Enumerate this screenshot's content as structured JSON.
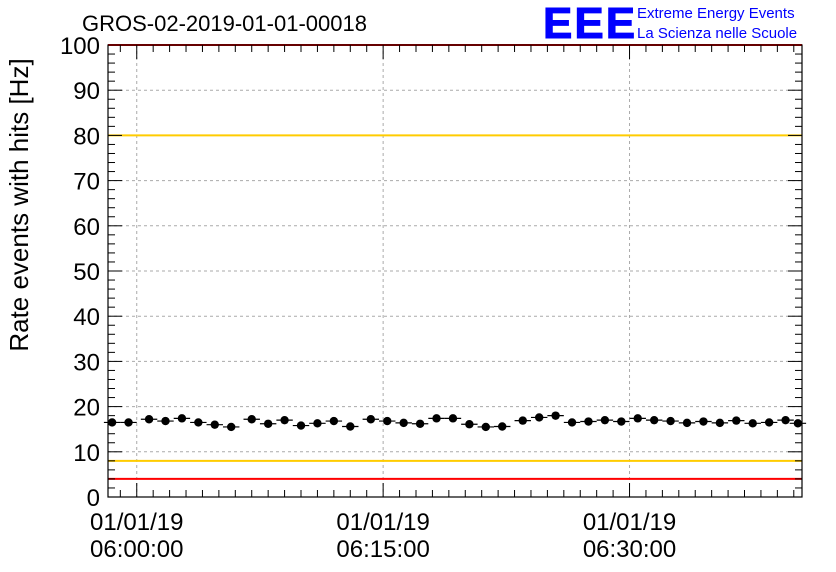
{
  "title": "GROS-02-2019-01-01-00018",
  "logo": {
    "letters": "EEE",
    "line1": "Extreme Energy Events",
    "line2": "La Scienza nelle Scuole",
    "color": "#0000ff"
  },
  "chart_data": {
    "type": "scatter",
    "title": "GROS-02-2019-01-01-00018",
    "ylabel": "Rate events with hits [Hz]",
    "xlabel": "",
    "ylim": [
      0,
      100
    ],
    "xlim_minutes": [
      -1.75,
      40.5
    ],
    "x_unit": "minutes after 01/01/19 06:00:00",
    "yticks": [
      "0",
      "10",
      "20",
      "30",
      "40",
      "50",
      "60",
      "70",
      "80",
      "90",
      "100"
    ],
    "xticks": [
      {
        "minute": 0,
        "date": "01/01/19",
        "time": "06:00:00"
      },
      {
        "minute": 15,
        "date": "01/01/19",
        "time": "06:15:00"
      },
      {
        "minute": 30,
        "date": "01/01/19",
        "time": "06:30:00"
      }
    ],
    "grid": true,
    "reference_lines": [
      {
        "y": 100,
        "color": "#ff0000"
      },
      {
        "y": 80,
        "color": "#ffcc00"
      },
      {
        "y": 8,
        "color": "#ffcc00"
      },
      {
        "y": 4,
        "color": "#ff0000"
      }
    ],
    "series": [
      {
        "marker_color": "#000000",
        "x": [
          -1.5,
          -0.5,
          0.75,
          1.75,
          2.75,
          3.75,
          4.75,
          5.75,
          7.0,
          8.0,
          9.0,
          10.0,
          11.0,
          12.0,
          13.0,
          14.25,
          15.25,
          16.25,
          17.25,
          18.25,
          19.25,
          20.25,
          21.25,
          22.25,
          23.5,
          24.5,
          25.5,
          26.5,
          27.5,
          28.5,
          29.5,
          30.5,
          31.5,
          32.5,
          33.5,
          34.5,
          35.5,
          36.5,
          37.5,
          38.5,
          39.5,
          40.25
        ],
        "y": [
          16.5,
          16.5,
          17.2,
          16.8,
          17.4,
          16.5,
          16.0,
          15.5,
          17.2,
          16.2,
          17.0,
          15.8,
          16.3,
          16.8,
          15.6,
          17.2,
          16.8,
          16.4,
          16.2,
          17.4,
          17.4,
          16.1,
          15.5,
          15.6,
          16.9,
          17.6,
          18.0,
          16.5,
          16.7,
          17.0,
          16.7,
          17.4,
          17.0,
          16.8,
          16.4,
          16.7,
          16.4,
          16.9,
          16.3,
          16.5,
          17.0,
          16.3
        ],
        "yerr": 0.8
      }
    ]
  }
}
